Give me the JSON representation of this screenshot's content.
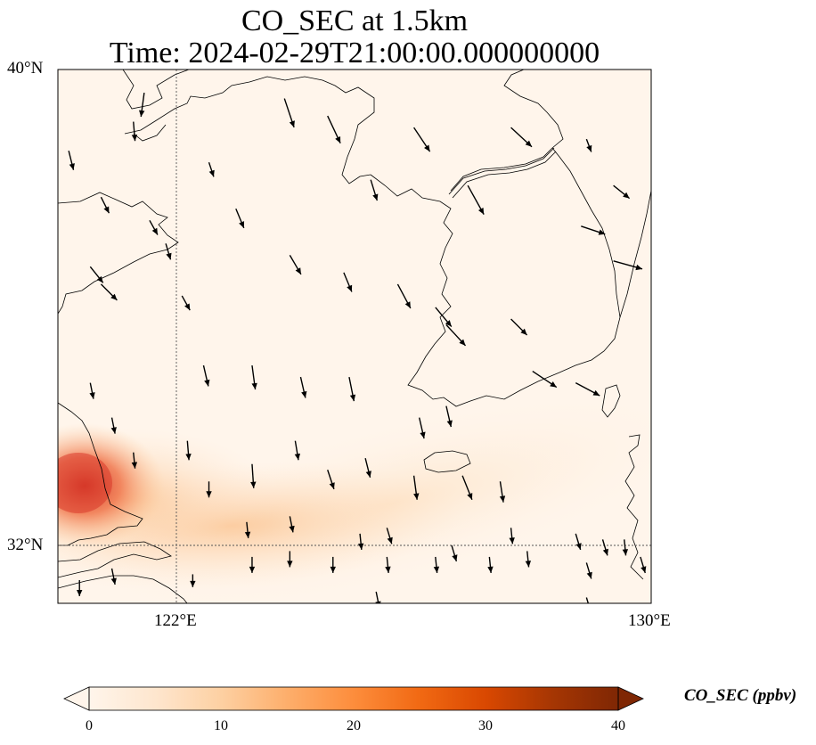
{
  "title": {
    "line1": "CO_SEC at 1.5km",
    "line2": "Time: 2024-02-29T21:00:00.000000000"
  },
  "map": {
    "lon_range": [
      119,
      130
    ],
    "lat_range": [
      30.8,
      40
    ],
    "lat_ticks": [
      {
        "value": 40,
        "label": "40°N"
      },
      {
        "value": 32,
        "label": "32°N"
      }
    ],
    "lon_ticks": [
      {
        "value": 122,
        "label": "122°E"
      },
      {
        "value": 130,
        "label": "130°E"
      }
    ],
    "gridlines": "dotted",
    "background_color": "#fff5eb",
    "coastline_color": "#000000",
    "concentration_field": [
      {
        "lon": 119.5,
        "lat": 32.9,
        "value": 30
      },
      {
        "lon": 120.3,
        "lat": 32.3,
        "value": 18
      },
      {
        "lon": 122.5,
        "lat": 32.0,
        "value": 10
      },
      {
        "lon": 124.5,
        "lat": 31.7,
        "value": 7
      },
      {
        "lon": 126.5,
        "lat": 32.4,
        "value": 4
      }
    ]
  },
  "wind_vectors": [
    {
      "lon": 120.6,
      "lat": 39.6,
      "u": -0.2,
      "v": -1.5
    },
    {
      "lon": 119.2,
      "lat": 38.6,
      "u": 0.3,
      "v": -1.2
    },
    {
      "lon": 119.8,
      "lat": 37.8,
      "u": 0.5,
      "v": -1.0
    },
    {
      "lon": 119.8,
      "lat": 36.3,
      "u": 1.0,
      "v": -1.0
    },
    {
      "lon": 121.3,
      "lat": 36.1,
      "u": 0.5,
      "v": -0.9
    },
    {
      "lon": 122.3,
      "lat": 37.6,
      "u": 0.5,
      "v": -1.2
    },
    {
      "lon": 123.2,
      "lat": 39.5,
      "u": 0.6,
      "v": -1.8
    },
    {
      "lon": 124.0,
      "lat": 39.2,
      "u": 0.8,
      "v": -1.7
    },
    {
      "lon": 124.8,
      "lat": 38.1,
      "u": 0.4,
      "v": -1.3
    },
    {
      "lon": 125.6,
      "lat": 39.0,
      "u": 1.0,
      "v": -1.5
    },
    {
      "lon": 126.6,
      "lat": 38.0,
      "u": 1.0,
      "v": -1.8
    },
    {
      "lon": 127.4,
      "lat": 39.0,
      "u": 1.3,
      "v": -1.2
    },
    {
      "lon": 128.8,
      "lat": 38.8,
      "u": 0.3,
      "v": -0.8
    },
    {
      "lon": 129.3,
      "lat": 38.0,
      "u": 1.0,
      "v": -0.8
    },
    {
      "lon": 128.7,
      "lat": 37.3,
      "u": 1.5,
      "v": -0.5
    },
    {
      "lon": 129.3,
      "lat": 36.7,
      "u": 1.8,
      "v": -0.5
    },
    {
      "lon": 123.3,
      "lat": 36.8,
      "u": 0.7,
      "v": -1.2
    },
    {
      "lon": 124.3,
      "lat": 36.5,
      "u": 0.5,
      "v": -1.2
    },
    {
      "lon": 125.3,
      "lat": 36.3,
      "u": 0.8,
      "v": -1.5
    },
    {
      "lon": 126.0,
      "lat": 35.9,
      "u": 1.0,
      "v": -1.2
    },
    {
      "lon": 126.2,
      "lat": 35.6,
      "u": 1.2,
      "v": -1.3
    },
    {
      "lon": 127.4,
      "lat": 35.7,
      "u": 1.0,
      "v": -1.0
    },
    {
      "lon": 127.8,
      "lat": 34.8,
      "u": 1.5,
      "v": -1.0
    },
    {
      "lon": 128.6,
      "lat": 34.6,
      "u": 1.5,
      "v": -0.8
    },
    {
      "lon": 121.7,
      "lat": 34.9,
      "u": 0.3,
      "v": -1.3
    },
    {
      "lon": 122.6,
      "lat": 34.9,
      "u": 0.2,
      "v": -1.5
    },
    {
      "lon": 123.5,
      "lat": 34.7,
      "u": 0.3,
      "v": -1.3
    },
    {
      "lon": 124.4,
      "lat": 34.7,
      "u": 0.3,
      "v": -1.5
    },
    {
      "lon": 125.7,
      "lat": 34.0,
      "u": 0.3,
      "v": -1.3
    },
    {
      "lon": 126.2,
      "lat": 34.2,
      "u": 0.3,
      "v": -1.3
    },
    {
      "lon": 120.4,
      "lat": 33.4,
      "u": 0.1,
      "v": -1.0
    },
    {
      "lon": 121.4,
      "lat": 33.6,
      "u": 0.1,
      "v": -1.2
    },
    {
      "lon": 122.6,
      "lat": 33.2,
      "u": 0.1,
      "v": -1.5
    },
    {
      "lon": 123.4,
      "lat": 33.6,
      "u": 0.2,
      "v": -1.2
    },
    {
      "lon": 124.0,
      "lat": 33.1,
      "u": 0.4,
      "v": -1.2
    },
    {
      "lon": 124.7,
      "lat": 33.3,
      "u": 0.3,
      "v": -1.2
    },
    {
      "lon": 125.6,
      "lat": 33.0,
      "u": 0.2,
      "v": -1.5
    },
    {
      "lon": 126.5,
      "lat": 33.0,
      "u": 0.6,
      "v": -1.5
    },
    {
      "lon": 127.2,
      "lat": 32.9,
      "u": 0.2,
      "v": -1.3
    },
    {
      "lon": 121.8,
      "lat": 32.9,
      "u": 0.0,
      "v": -1.0
    },
    {
      "lon": 122.5,
      "lat": 32.2,
      "u": 0.1,
      "v": -1.0
    },
    {
      "lon": 123.3,
      "lat": 32.3,
      "u": 0.2,
      "v": -1.0
    },
    {
      "lon": 124.6,
      "lat": 32.0,
      "u": 0.1,
      "v": -1.0
    },
    {
      "lon": 125.1,
      "lat": 32.1,
      "u": 0.3,
      "v": -1.0
    },
    {
      "lon": 126.3,
      "lat": 31.8,
      "u": 0.3,
      "v": -1.0
    },
    {
      "lon": 127.4,
      "lat": 32.1,
      "u": 0.1,
      "v": -1.0
    },
    {
      "lon": 128.6,
      "lat": 32.0,
      "u": 0.3,
      "v": -1.0
    },
    {
      "lon": 129.1,
      "lat": 31.9,
      "u": 0.3,
      "v": -1.0
    },
    {
      "lon": 129.5,
      "lat": 31.9,
      "u": 0.1,
      "v": -1.0
    },
    {
      "lon": 120.0,
      "lat": 31.4,
      "u": 0.2,
      "v": -1.0
    },
    {
      "lon": 122.6,
      "lat": 31.6,
      "u": 0.0,
      "v": -1.0
    },
    {
      "lon": 123.3,
      "lat": 31.7,
      "u": 0.0,
      "v": -1.0
    },
    {
      "lon": 124.1,
      "lat": 31.6,
      "u": 0.0,
      "v": -1.0
    },
    {
      "lon": 125.1,
      "lat": 31.6,
      "u": 0.1,
      "v": -1.0
    },
    {
      "lon": 126.0,
      "lat": 31.6,
      "u": 0.1,
      "v": -1.0
    },
    {
      "lon": 127.0,
      "lat": 31.6,
      "u": 0.1,
      "v": -1.0
    },
    {
      "lon": 127.7,
      "lat": 31.7,
      "u": 0.1,
      "v": -1.0
    },
    {
      "lon": 128.8,
      "lat": 31.5,
      "u": 0.3,
      "v": -1.0
    },
    {
      "lon": 129.8,
      "lat": 31.6,
      "u": 0.3,
      "v": -1.0
    },
    {
      "lon": 121.5,
      "lat": 31.3,
      "u": 0.0,
      "v": -0.8
    },
    {
      "lon": 119.4,
      "lat": 31.2,
      "u": 0.0,
      "v": -1.0
    },
    {
      "lon": 124.9,
      "lat": 31.0,
      "u": 0.2,
      "v": -1.0
    },
    {
      "lon": 128.8,
      "lat": 30.9,
      "u": 0.3,
      "v": -1.0
    },
    {
      "lon": 119.6,
      "lat": 36.6,
      "u": 0.8,
      "v": -1.0
    },
    {
      "lon": 121.0,
      "lat": 37.0,
      "u": 0.3,
      "v": -1.0
    },
    {
      "lon": 120.4,
      "lat": 39.1,
      "u": 0.1,
      "v": -1.2
    },
    {
      "lon": 121.8,
      "lat": 38.4,
      "u": 0.3,
      "v": -0.9
    },
    {
      "lon": 120.7,
      "lat": 37.4,
      "u": 0.5,
      "v": -0.9
    },
    {
      "lon": 119.6,
      "lat": 34.6,
      "u": 0.2,
      "v": -1.0
    },
    {
      "lon": 120.0,
      "lat": 34.0,
      "u": 0.2,
      "v": -1.0
    }
  ],
  "colorbar": {
    "label": "CO_SEC (ppbv)",
    "ticks": [
      "0",
      "10",
      "20",
      "30",
      "40"
    ],
    "range": [
      0,
      40
    ],
    "colormap": [
      "#fff5eb",
      "#fee6ce",
      "#fdd0a2",
      "#fdae6b",
      "#fd8d3c",
      "#f16913",
      "#d94801",
      "#a63603",
      "#7f2704"
    ]
  }
}
